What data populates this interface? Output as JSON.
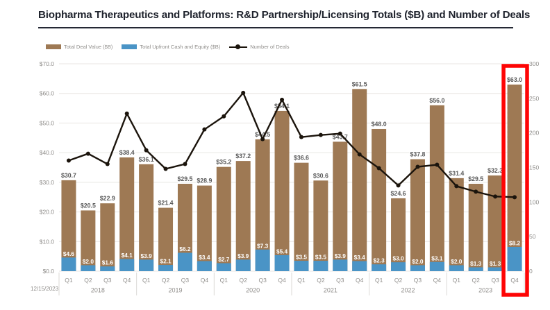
{
  "title": "Biopharma Therapeutics and Platforms: R&D Partnership/Licensing Totals ($B) and Number of Deals",
  "footnote_date": "12/15/2023",
  "legend": [
    {
      "label": "Total Deal Value ($B)",
      "swatch": "bar",
      "color": "#9e7954"
    },
    {
      "label": "Total Upfront Cash and Equity ($B)",
      "swatch": "bar",
      "color": "#4a94c6"
    },
    {
      "label": "Number of Deals",
      "swatch": "line",
      "color": "#1b140c"
    }
  ],
  "chart_data": {
    "type": "bar+line",
    "bar_mode": "overlay",
    "title": "Biopharma Therapeutics and Platforms: R&D Partnership/Licensing Totals ($B) and Number of Deals",
    "categories": [
      "Q1",
      "Q2",
      "Q3",
      "Q4",
      "Q1",
      "Q2",
      "Q3",
      "Q4",
      "Q1",
      "Q2",
      "Q3",
      "Q4",
      "Q1",
      "Q2",
      "Q3",
      "Q4",
      "Q1",
      "Q2",
      "Q3",
      "Q4",
      "Q1",
      "Q2",
      "Q3",
      "Q4"
    ],
    "year_groups": [
      "2018",
      "2019",
      "2020",
      "2021",
      "2022",
      "2023"
    ],
    "series": [
      {
        "name": "Total Deal Value ($B)",
        "type": "bar",
        "axis": "left",
        "color": "#9e7954",
        "values": [
          30.7,
          20.5,
          22.9,
          38.4,
          36.1,
          21.4,
          29.5,
          28.9,
          35.2,
          37.2,
          44.5,
          54.1,
          36.6,
          30.6,
          43.7,
          61.5,
          48.0,
          24.6,
          37.8,
          56.0,
          31.4,
          29.5,
          32.3,
          63.0
        ]
      },
      {
        "name": "Total Upfront Cash and Equity ($B)",
        "type": "bar",
        "axis": "left",
        "color": "#4a94c6",
        "values": [
          4.6,
          2.0,
          1.6,
          4.1,
          3.9,
          2.1,
          6.2,
          3.4,
          2.7,
          3.9,
          7.3,
          5.4,
          3.5,
          3.5,
          3.9,
          3.4,
          2.3,
          3.0,
          2.0,
          3.1,
          2.0,
          1.3,
          1.3,
          8.2
        ]
      },
      {
        "name": "Number of Deals",
        "type": "line",
        "axis": "right",
        "color": "#1b140c",
        "values": [
          160,
          170,
          155,
          228,
          175,
          148,
          155,
          205,
          224,
          258,
          191,
          248,
          194,
          197,
          199,
          169,
          149,
          124,
          151,
          154,
          123,
          115,
          108,
          107
        ]
      }
    ],
    "y_left": {
      "min": 0,
      "max": 70,
      "ticks": [
        "$0.0",
        "$10.0",
        "$20.0",
        "$30.0",
        "$40.0",
        "$50.0",
        "$60.0",
        "$70.0"
      ]
    },
    "y_right": {
      "min": 0,
      "max": 300,
      "ticks": [
        "0",
        "50",
        "100",
        "150",
        "200",
        "250",
        "300"
      ]
    },
    "gridlines": true,
    "legend_position": "top-left",
    "highlight": {
      "index": 23,
      "color": "#fe0505"
    }
  }
}
